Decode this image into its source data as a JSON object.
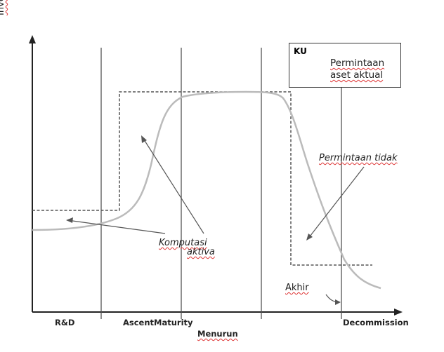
{
  "axis": {
    "y_title": "Investasi"
  },
  "phases": {
    "rd": "R&D",
    "ascent_maturity": "AscentMaturity",
    "decline": "Menurun",
    "decommission": "Decommission"
  },
  "legend": {
    "title": "KU",
    "demand_label": "Permintaan",
    "actual_label": "aset aktual"
  },
  "annotations": {
    "unmet_demand": "Permintaan tidak",
    "active_computation_line1": "Komputasi",
    "active_computation_line2": "aktiva",
    "end": "Akhir"
  },
  "colors": {
    "demand_line": "#555555",
    "actual_line": "#bbbbbb",
    "axis": "#222222",
    "phase_divider": "#555555"
  }
}
